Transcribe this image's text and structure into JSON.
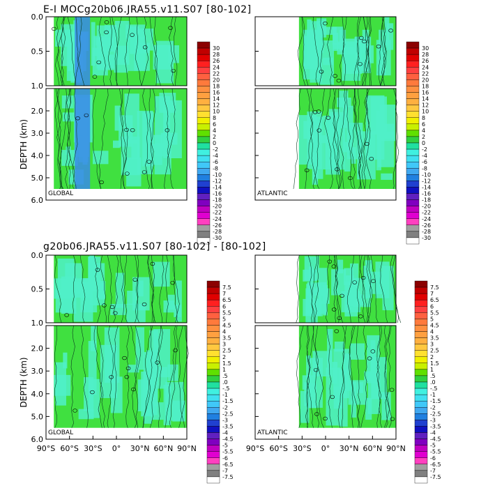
{
  "chart_data": [
    {
      "type": "heatmap",
      "title": "E-I MOCg20b06.JRA55.v11.S07 [80-102]",
      "ylabel": "DEPTH (km)",
      "panels": [
        {
          "label": "GLOBAL",
          "lat_range": [
            -80,
            90
          ],
          "bottom_depth": 5.5
        },
        {
          "label": "ATLANTIC",
          "lat_range": [
            -34,
            90
          ],
          "bottom_depth": 5.5
        }
      ],
      "upper_ticks": [
        "0.0",
        "0.5",
        "1.0"
      ],
      "lower_ticks": [
        "2.0",
        "3.0",
        "4.0",
        "5.0",
        "6.0"
      ],
      "ylim_upper": [
        0,
        1
      ],
      "ylim_lower": [
        1,
        6
      ],
      "colorbar_levels": [
        "30",
        "28",
        "26",
        "24",
        "22",
        "20",
        "18",
        "16",
        "14",
        "12",
        "10",
        "8",
        "6",
        "4",
        "2",
        "0",
        "-2",
        "-4",
        "-6",
        "-8",
        "-10",
        "-12",
        "-14",
        "-16",
        "-18",
        "-20",
        "-22",
        "-24",
        "-26",
        "-28",
        "-30"
      ]
    },
    {
      "type": "heatmap",
      "title": "g20b06.JRA55.v11.S07 [80-102] - [80-102]",
      "ylabel": "DEPTH (km)",
      "panels": [
        {
          "label": "GLOBAL",
          "lat_range": [
            -80,
            90
          ],
          "bottom_depth": 5.5
        },
        {
          "label": "ATLANTIC",
          "lat_range": [
            -34,
            90
          ],
          "bottom_depth": 5.5
        }
      ],
      "upper_ticks": [
        "0.0",
        "0.5",
        "1.0"
      ],
      "lower_ticks": [
        "2.0",
        "3.0",
        "4.0",
        "5.0",
        "6.0"
      ],
      "ylim_upper": [
        0,
        1
      ],
      "ylim_lower": [
        1,
        6
      ],
      "xlim": [
        -90,
        90
      ],
      "x_ticks": [
        "90°S",
        "60°S",
        "30°S",
        "0°",
        "30°N",
        "60°N",
        "90°N"
      ],
      "colorbar_levels": [
        "7.5",
        "7",
        "6.5",
        "6",
        "5.5",
        "5",
        "4.5",
        "4",
        "3.5",
        "3",
        "2.5",
        "2",
        "1.5",
        "1",
        ".5",
        ".0",
        "-.5",
        "-1",
        "-1.5",
        "-2",
        "-2.5",
        "-3",
        "-3.5",
        "-4",
        "-4.5",
        "-5",
        "-5.5",
        "-6",
        "-6.5",
        "-7",
        "-7.5"
      ]
    }
  ],
  "colors": {
    "scale": [
      "#8b0000",
      "#c00000",
      "#e00000",
      "#ff2020",
      "#ff4040",
      "#ff6040",
      "#ff7a3c",
      "#ff9040",
      "#ffa040",
      "#ffb040",
      "#ffc840",
      "#ffe030",
      "#f0f000",
      "#c8f000",
      "#60e000",
      "#30d040",
      "#20e0a0",
      "#40f0e0",
      "#40e0f0",
      "#40c8f8",
      "#40a8f0",
      "#2080e0",
      "#2040d0",
      "#1010c0",
      "#6020c0",
      "#8000c0",
      "#c000c0",
      "#e000d0",
      "#ff40c0",
      "#a0a0a0",
      "#808080",
      "#ffffff"
    ],
    "field_green": "#40e040",
    "field_cyan": "#50f0c8",
    "field_blue": "#3a8ae8"
  }
}
